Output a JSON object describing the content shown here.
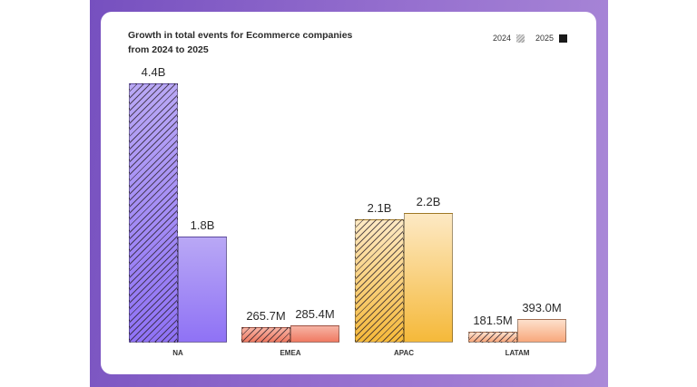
{
  "chart_data": {
    "type": "bar",
    "title": "Growth in total events for Ecommerce companies from 2024 to 2025",
    "title_lines": [
      "Growth in total events for Ecommerce companies",
      "from 2024 to 2025"
    ],
    "categories": [
      "NA",
      "EMEA",
      "APAC",
      "LATAM"
    ],
    "series": [
      {
        "name": "2024",
        "values": [
          4.4,
          0.2657,
          2.1,
          0.1815
        ],
        "labels": [
          "4.4B",
          "265.7M",
          "2.1B",
          "181.5M"
        ],
        "style": "hatched"
      },
      {
        "name": "2025",
        "values": [
          1.8,
          0.2854,
          2.2,
          0.393
        ],
        "labels": [
          "1.8B",
          "285.4M",
          "2.2B",
          "393.0M"
        ],
        "style": "solid"
      }
    ],
    "unit": "billions of events",
    "colors": {
      "NA": [
        "#b9a8f5",
        "#8f72f5"
      ],
      "EMEA": [
        "#f6b3a4",
        "#f07a62"
      ],
      "APAC": [
        "#fde9c4",
        "#f5b93a"
      ],
      "LATAM": [
        "#fde0cc",
        "#f8a87c"
      ]
    },
    "legend": {
      "position": "top-right",
      "items": [
        "2024",
        "2025"
      ]
    },
    "grid": false,
    "xlabel": "",
    "ylabel": ""
  }
}
